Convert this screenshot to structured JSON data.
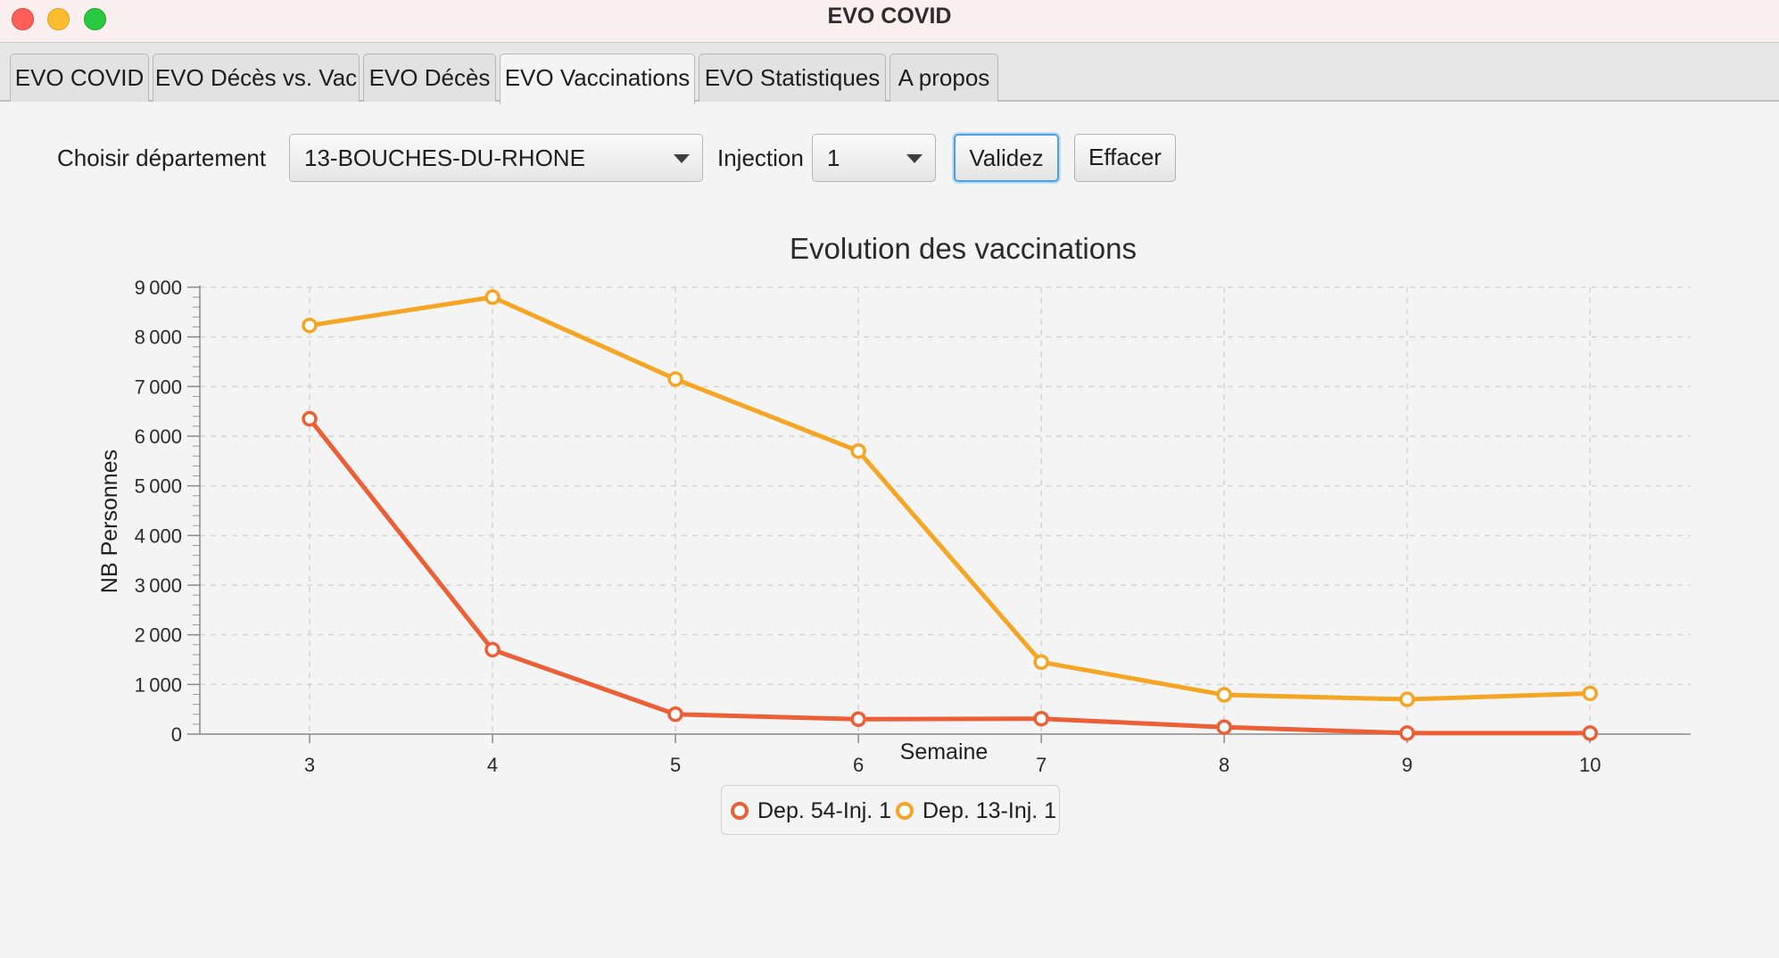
{
  "window": {
    "title": "EVO COVID"
  },
  "tabs": [
    {
      "label": "EVO COVID"
    },
    {
      "label": "EVO Décès vs. Vac"
    },
    {
      "label": "EVO Décès"
    },
    {
      "label": "EVO Vaccinations",
      "active": true
    },
    {
      "label": "EVO Statistiques"
    },
    {
      "label": "A propos"
    }
  ],
  "controls": {
    "departement_label": "Choisir département",
    "departement_value": "13-BOUCHES-DU-RHONE",
    "injection_label": "Injection",
    "injection_value": "1",
    "validate_label": "Validez",
    "clear_label": "Effacer"
  },
  "chart_data": {
    "type": "line",
    "title": "Evolution des vaccinations",
    "xlabel": "Semaine",
    "ylabel": "NB Personnes",
    "x": [
      3,
      4,
      5,
      6,
      7,
      8,
      9,
      10
    ],
    "xlim": [
      2.4,
      10.55
    ],
    "ylim": [
      0,
      9000
    ],
    "y_ticks": [
      "0",
      "1000",
      "2000",
      "3000",
      "4000",
      "5000",
      "6000",
      "7000",
      "8000",
      "9000"
    ],
    "x_ticks": [
      "3",
      "4",
      "5",
      "6",
      "7",
      "8",
      "9",
      "10"
    ],
    "grid": true,
    "legend_position": "bottom-center",
    "series": [
      {
        "name": "Dep. 54-Inj. 1",
        "color": "#ec5e35",
        "values": [
          6350,
          1700,
          400,
          300,
          310,
          140,
          20,
          20
        ]
      },
      {
        "name": "Dep. 13-Inj. 1",
        "color": "#f5a524",
        "values": [
          8230,
          8800,
          7150,
          5700,
          1450,
          790,
          700,
          820
        ]
      }
    ]
  }
}
